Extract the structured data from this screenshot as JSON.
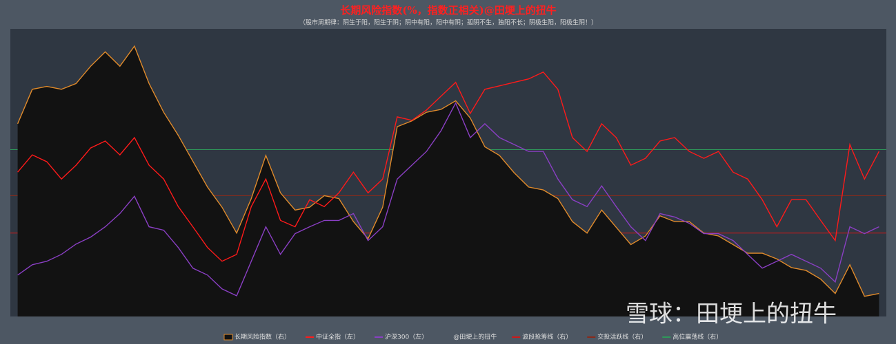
{
  "chart_data": {
    "type": "line",
    "title": "长期风险指数(%，指数正相关)@田埂上的扭牛",
    "subtitle": "（股市周期律：阴生于阳，阳生于阴；阴中有阳，阳中有阴；孤阴不生，独阳不长；阴极生阳，阳极生阴！）",
    "categories": [
      null,
      null,
      null,
      null,
      null,
      null,
      null,
      null,
      null,
      null,
      null,
      null,
      null,
      null,
      null,
      null,
      null,
      null,
      null,
      null,
      null,
      null,
      null,
      null,
      null,
      null,
      null,
      null,
      null,
      null,
      null,
      null,
      null,
      null,
      null,
      null,
      null,
      null,
      null,
      null,
      null,
      null,
      null,
      null,
      null,
      null,
      null,
      null,
      null,
      null,
      null,
      null,
      null,
      null,
      null,
      null,
      null,
      null,
      null,
      null
    ],
    "ylim": [
      3000,
      8000
    ],
    "y2lim": [
      0,
      100
    ],
    "series": [
      {
        "name": "长期风险指数（右）",
        "color": "#e08a2a",
        "fill": "#121212",
        "axis": "y2",
        "values": [
          67,
          79,
          80,
          79,
          81,
          87,
          92,
          87,
          94,
          81,
          71,
          63,
          54,
          45,
          38,
          29,
          41,
          56,
          43,
          37,
          38,
          42,
          41,
          33,
          27,
          38,
          66,
          68,
          71,
          72,
          75,
          69,
          59,
          56,
          50,
          45,
          44,
          41,
          33,
          29,
          37,
          31,
          25,
          28,
          35,
          33,
          33,
          29,
          28,
          25,
          22,
          22,
          20,
          17,
          16,
          13,
          8,
          18,
          7,
          8
        ]
      },
      {
        "name": "中证全指（左）",
        "color": "#ff1a1a",
        "values": [
          5510,
          5810,
          5690,
          5390,
          5630,
          5930,
          6050,
          5810,
          6110,
          5630,
          5390,
          4910,
          4560,
          4200,
          3960,
          4080,
          4910,
          5390,
          4670,
          4560,
          5030,
          4910,
          5150,
          5510,
          5150,
          5390,
          6470,
          6410,
          6590,
          6830,
          7070,
          6530,
          6950,
          7010,
          7070,
          7130,
          7250,
          6950,
          6110,
          5870,
          6350,
          6110,
          5630,
          5750,
          6050,
          6110,
          5870,
          5750,
          5870,
          5510,
          5390,
          5030,
          4560,
          5030,
          5030,
          4670,
          4320,
          5990,
          5390,
          5870
        ]
      },
      {
        "name": "沪深300（左）",
        "color": "#8a3fc4",
        "values": [
          3720,
          3900,
          3960,
          4080,
          4260,
          4380,
          4560,
          4790,
          5090,
          4560,
          4500,
          4200,
          3840,
          3720,
          3480,
          3360,
          3960,
          4560,
          4080,
          4440,
          4560,
          4670,
          4670,
          4790,
          4320,
          4560,
          5390,
          5630,
          5870,
          6230,
          6710,
          6110,
          6350,
          6110,
          5990,
          5870,
          5870,
          5390,
          5030,
          4910,
          5270,
          4910,
          4560,
          4320,
          4790,
          4730,
          4620,
          4440,
          4440,
          4320,
          4080,
          3840,
          3960,
          4080,
          3960,
          3840,
          3600,
          4560,
          4440,
          4560
        ]
      }
    ],
    "credit": "@田埂上的扭牛",
    "hlines": [
      {
        "name": "波段抢筹线（右）",
        "color": "#d01818",
        "value": 29,
        "axis": "y2"
      },
      {
        "name": "交投活跃线（右）",
        "color": "#8a2a1a",
        "value": 42,
        "axis": "y2"
      },
      {
        "name": "高位震荡线（右）",
        "color": "#2e9a5a",
        "value": 58,
        "axis": "y2"
      }
    ],
    "watermark": "雪球：田埂上的扭牛"
  }
}
